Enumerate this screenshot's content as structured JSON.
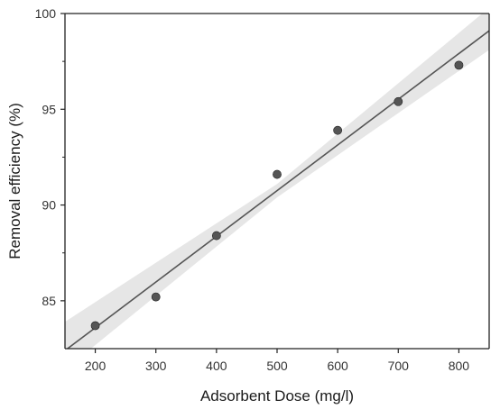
{
  "chart_data": {
    "type": "scatter",
    "title": "",
    "xlabel": "Adsorbent Dose (mg/l)",
    "ylabel": "Removal efficiency (%)",
    "xlim": [
      150,
      850
    ],
    "ylim": [
      82.5,
      100
    ],
    "x_ticks": [
      200,
      300,
      400,
      500,
      600,
      700,
      800
    ],
    "y_ticks": [
      85,
      90,
      95,
      100
    ],
    "grid": false,
    "series": [
      {
        "points": [
          {
            "x": 200,
            "y": 83.7
          },
          {
            "x": 300,
            "y": 85.2
          },
          {
            "x": 400,
            "y": 88.4
          },
          {
            "x": 500,
            "y": 91.6
          },
          {
            "x": 600,
            "y": 93.9
          },
          {
            "x": 700,
            "y": 95.4
          },
          {
            "x": 800,
            "y": 97.3
          }
        ],
        "color": "#555555"
      }
    ],
    "fit_line": {
      "type": "linear",
      "color": "#555555",
      "x_start": 150,
      "y_start": 82.4,
      "x_end": 850,
      "y_end": 99.1
    },
    "confidence_band": {
      "color": "#e6e6e6",
      "lower": [
        {
          "x": 150,
          "y": 81.4
        },
        {
          "x": 500,
          "y": 90.4
        },
        {
          "x": 850,
          "y": 98.1
        }
      ],
      "upper": [
        {
          "x": 150,
          "y": 83.9
        },
        {
          "x": 500,
          "y": 91.1
        },
        {
          "x": 850,
          "y": 100.3
        }
      ]
    }
  }
}
